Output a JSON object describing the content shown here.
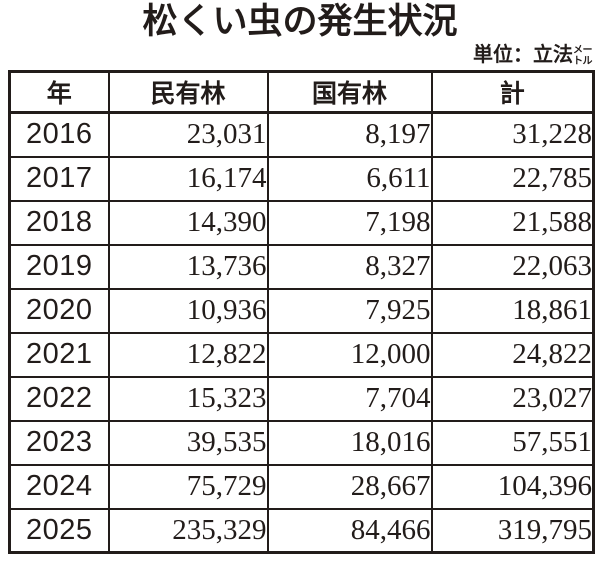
{
  "title": "松くい虫の発生状況",
  "unit": {
    "prefix": "単位：立法",
    "small_top": "メー",
    "small_bottom": "トル"
  },
  "table": {
    "headers": [
      "年",
      "民有林",
      "国有林",
      "計"
    ],
    "rows": [
      {
        "year": "2016",
        "private": "23,031",
        "national": "8,197",
        "total": "31,228"
      },
      {
        "year": "2017",
        "private": "16,174",
        "national": "6,611",
        "total": "22,785"
      },
      {
        "year": "2018",
        "private": "14,390",
        "national": "7,198",
        "total": "21,588"
      },
      {
        "year": "2019",
        "private": "13,736",
        "national": "8,327",
        "total": "22,063"
      },
      {
        "year": "2020",
        "private": "10,936",
        "national": "7,925",
        "total": "18,861"
      },
      {
        "year": "2021",
        "private": "12,822",
        "national": "12,000",
        "total": "24,822"
      },
      {
        "year": "2022",
        "private": "15,323",
        "national": "7,704",
        "total": "23,027"
      },
      {
        "year": "2023",
        "private": "39,535",
        "national": "18,016",
        "total": "57,551"
      },
      {
        "year": "2024",
        "private": "75,729",
        "national": "28,667",
        "total": "104,396"
      },
      {
        "year": "2025",
        "private": "235,329",
        "national": "84,466",
        "total": "319,795"
      }
    ]
  },
  "colors": {
    "ink": "#221c1a",
    "background": "#ffffff"
  }
}
